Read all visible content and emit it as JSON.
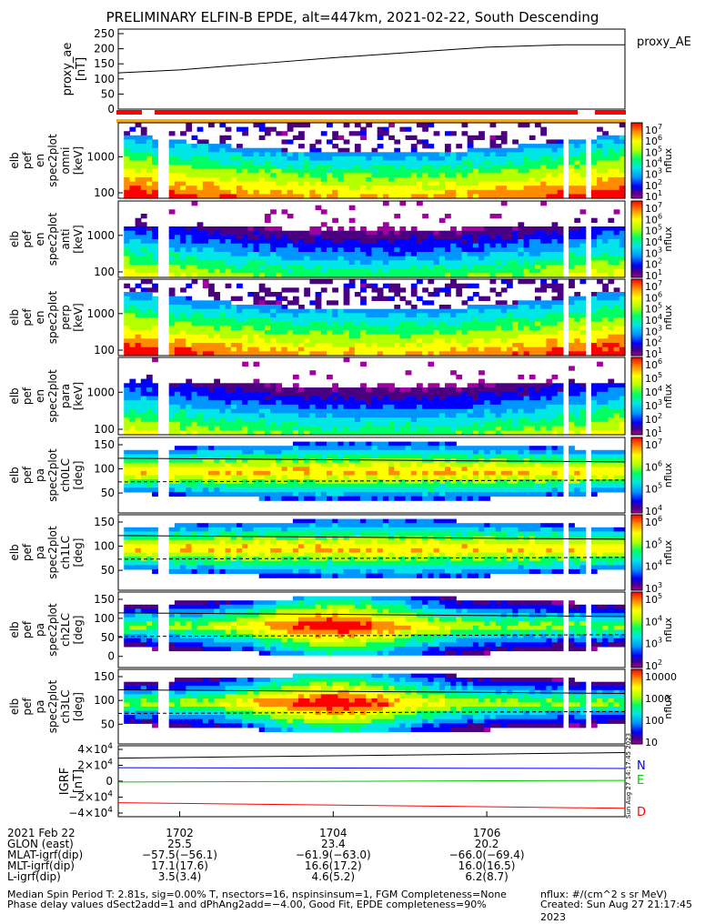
{
  "title": "PRELIMINARY ELFIN-B EPDE, alt=447km, 2021-02-22, South Descending",
  "chart_data": [
    {
      "type": "line",
      "ylabel": "proxy_ae\n[nT]",
      "legend": "proxy_AE",
      "ylim": [
        0,
        265
      ],
      "yticks": [
        "250",
        "200",
        "150",
        "100",
        "50",
        "0"
      ],
      "yticks_values": [
        250,
        200,
        150,
        100,
        50,
        0
      ],
      "x": [
        1701.2,
        1702.0,
        1703.0,
        1704.0,
        1705.0,
        1706.0,
        1707.0,
        1707.8
      ],
      "series": [
        {
          "values": [
            120,
            130,
            150,
            170,
            188,
            205,
            213,
            213
          ]
        }
      ]
    },
    {
      "type": "heatmap",
      "ylabel": [
        "elb",
        "pef",
        "en",
        "spec2plot",
        "omni",
        "[keV]"
      ],
      "yticks": [
        "1000",
        "100"
      ],
      "cbar_label": "nflux",
      "cbar_ticks": [
        "10^7",
        "10^6",
        "10^5",
        "10^4",
        "10^3",
        "10^2",
        "10^1"
      ]
    },
    {
      "type": "heatmap",
      "ylabel": [
        "elb",
        "pef",
        "en",
        "spec2plot",
        "anti",
        "[keV]"
      ],
      "yticks": [
        "1000",
        "100"
      ],
      "cbar_label": "nflux",
      "cbar_ticks": [
        "10^7",
        "10^6",
        "10^5",
        "10^4",
        "10^3",
        "10^2",
        "10^1"
      ]
    },
    {
      "type": "heatmap",
      "ylabel": [
        "elb",
        "pef",
        "en",
        "spec2plot",
        "perp",
        "[keV]"
      ],
      "yticks": [
        "1000",
        "100"
      ],
      "cbar_label": "nflux",
      "cbar_ticks": [
        "10^7",
        "10^6",
        "10^5",
        "10^4",
        "10^3",
        "10^2",
        "10^1"
      ]
    },
    {
      "type": "heatmap",
      "ylabel": [
        "elb",
        "pef",
        "en",
        "spec2plot",
        "para",
        "[keV]"
      ],
      "yticks": [
        "1000",
        "100"
      ],
      "cbar_label": "nflux",
      "cbar_ticks": [
        "10^6",
        "10^5",
        "10^4",
        "10^3",
        "10^2",
        "10^1"
      ]
    },
    {
      "type": "heatmap",
      "ylabel": [
        "elb",
        "pef",
        "pa",
        "spec2plot",
        "ch0LC",
        "[deg]"
      ],
      "yticks": [
        "150",
        "100",
        "50"
      ],
      "cbar_label": "nflux",
      "cbar_ticks": [
        "10^7",
        "10^6",
        "10^5",
        "10^4"
      ]
    },
    {
      "type": "heatmap",
      "ylabel": [
        "elb",
        "pef",
        "pa",
        "spec2plot",
        "ch1LC",
        "[deg]"
      ],
      "yticks": [
        "150",
        "100",
        "50"
      ],
      "cbar_label": "nflux",
      "cbar_ticks": [
        "10^6",
        "10^5",
        "10^4",
        "10^3"
      ]
    },
    {
      "type": "heatmap",
      "ylabel": [
        "elb",
        "pef",
        "pa",
        "spec2plot",
        "ch2LC",
        "[deg]"
      ],
      "yticks": [
        "150",
        "100",
        "50",
        "0"
      ],
      "cbar_label": "nflux",
      "cbar_ticks": [
        "10^5",
        "10^4",
        "10^3",
        "10^2"
      ]
    },
    {
      "type": "heatmap",
      "ylabel": [
        "elb",
        "pef",
        "pa",
        "spec2plot",
        "ch3LC",
        "[deg]"
      ],
      "yticks": [
        "150",
        "100",
        "50"
      ],
      "cbar_label": "nflux",
      "cbar_ticks": [
        "10000",
        "1000",
        "100",
        "10"
      ]
    },
    {
      "type": "line",
      "ylabel": "IGRF\n[nT]",
      "yticks": [
        "4×10^4",
        "2×10^4",
        "0",
        "−2×10^4",
        "−4×10^4"
      ],
      "legend": [
        "N",
        "E",
        "D"
      ],
      "colors": {
        "N": "#0000ff",
        "E": "#00cc00",
        "D": "#ff0000",
        "total": "#000000"
      },
      "x": [
        1701.2,
        1707.8
      ],
      "series": [
        {
          "name": "N",
          "values": [
            17000,
            16000
          ]
        },
        {
          "name": "E",
          "values": [
            -1000,
            1000
          ]
        },
        {
          "name": "D",
          "values": [
            -27000,
            -34000
          ]
        },
        {
          "name": "",
          "values": [
            29000,
            36000
          ]
        }
      ]
    }
  ],
  "colorbar_colors": [
    "#ff0000",
    "#ff8c00",
    "#ffff00",
    "#b4ff00",
    "#00ff64",
    "#00e6e6",
    "#0096ff",
    "#0000ff",
    "#4b0082",
    "#a000a0"
  ],
  "xaxis": {
    "ticks": [
      "1702",
      "1704",
      "1706"
    ],
    "tick_values": [
      1702,
      1704,
      1706
    ],
    "rows": [
      {
        "label": "2021 Feb 22",
        "values": [
          "1702",
          "1704",
          "1706"
        ]
      },
      {
        "label": "GLON (east)",
        "values": [
          "25.5",
          "23.4",
          "20.2"
        ]
      },
      {
        "label": "MLAT-igrf(dip)",
        "values": [
          "−57.5(−56.1)",
          "−61.9(−63.0)",
          "−66.0(−69.4)"
        ]
      },
      {
        "label": "MLT-igrf(dip)",
        "values": [
          "17.1(17.6)",
          "16.6(17.2)",
          "16.0(16.5)"
        ]
      },
      {
        "label": "L-igrf(dip)",
        "values": [
          "3.5(3.4)",
          "4.6(5.2)",
          "6.2(8.7)"
        ]
      }
    ]
  },
  "footer": {
    "line1": "Median Spin Period T: 2.81s, sig=0.00% T, nsectors=16, nspinsinsum=1, FGM Completeness=None",
    "line2": "Phase delay values dSect2add=1 and dPhAng2add=−4.00, Good Fit, EPDE completeness=90%",
    "units": "nflux: #/(cm^2 s sr MeV)",
    "created": "Created: Sun Aug 27 21:17:45 2023",
    "side_stamp": "Sun Aug 27 14:17:45 2023"
  }
}
